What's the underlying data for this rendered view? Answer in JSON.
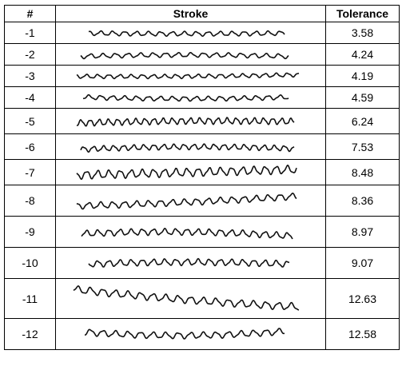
{
  "table": {
    "headers": [
      "#",
      "Stroke",
      "Tolerance"
    ],
    "rows": [
      {
        "num": "-1",
        "tolerance": "3.58"
      },
      {
        "num": "-2",
        "tolerance": "4.24"
      },
      {
        "num": "-3",
        "tolerance": "4.19"
      },
      {
        "num": "-4",
        "tolerance": "4.59"
      },
      {
        "num": "-5",
        "tolerance": "6.24"
      },
      {
        "num": "-6",
        "tolerance": "7.53"
      },
      {
        "num": "-7",
        "tolerance": "8.48"
      },
      {
        "num": "-8",
        "tolerance": "8.36"
      },
      {
        "num": "-9",
        "tolerance": "8.97"
      },
      {
        "num": "-10",
        "tolerance": "9.07"
      },
      {
        "num": "-11",
        "tolerance": "12.63"
      },
      {
        "num": "-12",
        "tolerance": "12.58"
      }
    ]
  }
}
